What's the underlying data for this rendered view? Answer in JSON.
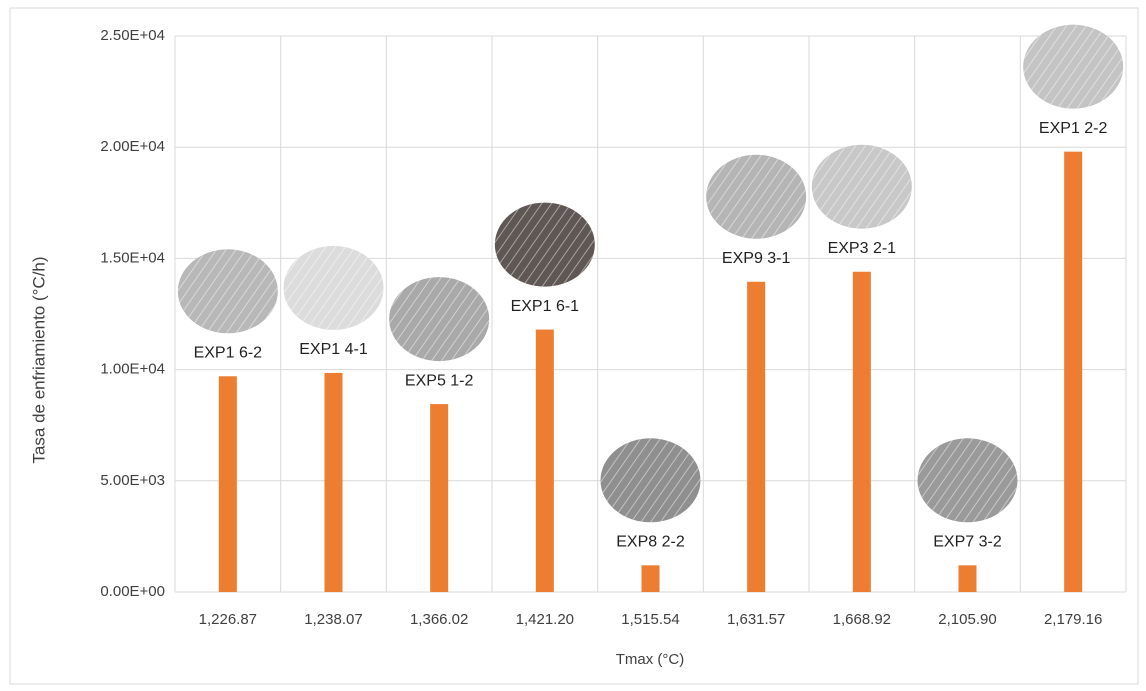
{
  "chart_data": {
    "type": "bar",
    "categories": [
      "1,226.87",
      "1,238.07",
      "1,366.02",
      "1,421.20",
      "1,515.54",
      "1,631.57",
      "1,668.92",
      "2,105.90",
      "2,179.16"
    ],
    "values": [
      9700,
      9850,
      8450,
      11800,
      1200,
      13950,
      14400,
      1200,
      19800
    ],
    "annotations": [
      "EXP1 6-2",
      "EXP1 4-1",
      "EXP5 1-2",
      "EXP1 6-1",
      "EXP8 2-2",
      "EXP9 3-1",
      "EXP3 2-1",
      "EXP7 3-2",
      "EXP1 2-2"
    ],
    "color": "#ed7d31",
    "x_label": "Tmax (°C)",
    "y_label": "Tasa de enfriamiento (°C/h)",
    "ylim": [
      0,
      25000
    ],
    "yticks": [
      {
        "value": 0,
        "label": "0.00E+00"
      },
      {
        "value": 5000,
        "label": "5.00E+03"
      },
      {
        "value": 10000,
        "label": "1.00E+04"
      },
      {
        "value": 15000,
        "label": "1.50E+04"
      },
      {
        "value": 20000,
        "label": "2.00E+04"
      },
      {
        "value": 25000,
        "label": "2.50E+04"
      }
    ],
    "grid": true
  }
}
